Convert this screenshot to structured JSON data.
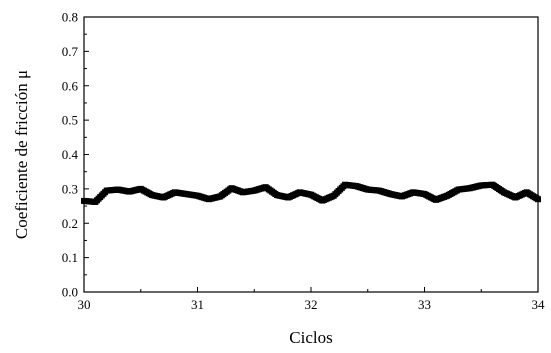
{
  "chart_data": {
    "type": "scatter",
    "title": "",
    "xlabel": "Ciclos",
    "ylabel": "Coeficiente de fricción μ",
    "xlim": [
      30,
      34
    ],
    "ylim": [
      0.0,
      0.8
    ],
    "xticks": [
      "30",
      "31",
      "32",
      "33",
      "34"
    ],
    "yticks": [
      "0.0",
      "0.1",
      "0.2",
      "0.3",
      "0.4",
      "0.5",
      "0.6",
      "0.7",
      "0.8"
    ],
    "grid": false,
    "legend": "none",
    "marker": "square",
    "color": "#000000",
    "series": [
      {
        "x": [
          30.0,
          30.1,
          30.2,
          30.3,
          30.4,
          30.5,
          30.6,
          30.7,
          30.8,
          30.9,
          31.0,
          31.1,
          31.2,
          31.3,
          31.4,
          31.5,
          31.6,
          31.7,
          31.8,
          31.9,
          32.0,
          32.1,
          32.2,
          32.3,
          32.4,
          32.5,
          32.6,
          32.7,
          32.8,
          32.9,
          33.0,
          33.1,
          33.2,
          33.3,
          33.4,
          33.5,
          33.6,
          33.7,
          33.8,
          33.9,
          34.0
        ],
        "y": [
          0.265,
          0.262,
          0.295,
          0.298,
          0.292,
          0.3,
          0.282,
          0.275,
          0.29,
          0.285,
          0.28,
          0.27,
          0.278,
          0.302,
          0.29,
          0.295,
          0.305,
          0.282,
          0.275,
          0.29,
          0.283,
          0.266,
          0.28,
          0.312,
          0.308,
          0.298,
          0.295,
          0.285,
          0.278,
          0.29,
          0.285,
          0.268,
          0.28,
          0.298,
          0.302,
          0.31,
          0.312,
          0.29,
          0.275,
          0.29,
          0.27
        ]
      }
    ]
  }
}
